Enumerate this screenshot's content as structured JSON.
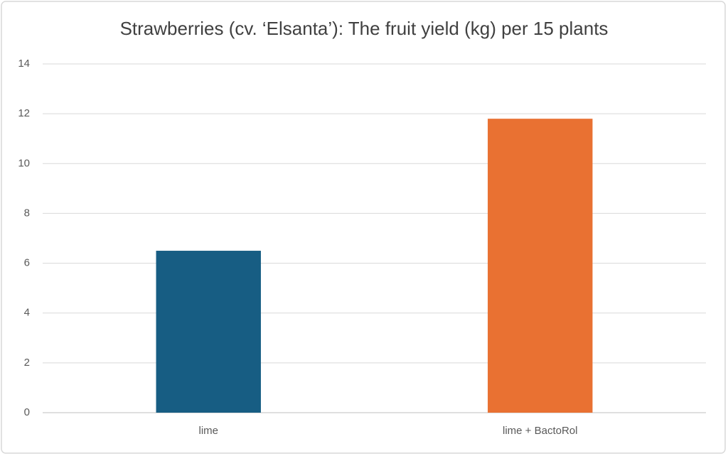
{
  "chart_data": {
    "type": "bar",
    "title": "Strawberries (cv. ‘Elsanta’): The fruit yield (kg) per 15 plants",
    "categories": [
      "lime",
      "lime + BactoRol"
    ],
    "values": [
      6.5,
      11.8
    ],
    "colors": [
      "#175d83",
      "#e97132"
    ],
    "ylim": [
      0,
      14
    ],
    "yticks": [
      0,
      2,
      4,
      6,
      8,
      10,
      12,
      14
    ],
    "grid": true
  }
}
